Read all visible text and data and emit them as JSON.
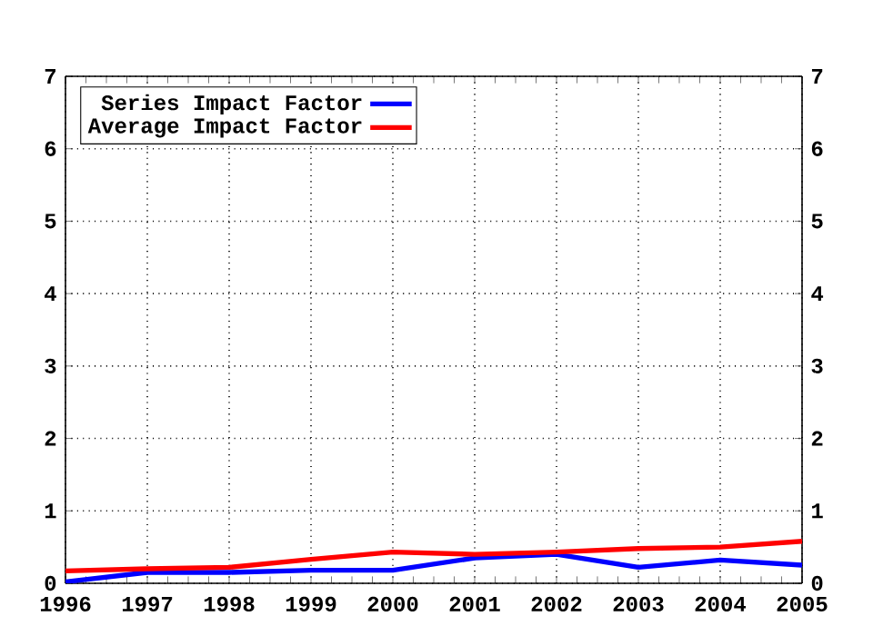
{
  "chart_data": {
    "type": "line",
    "x": [
      1996,
      1997,
      1998,
      1999,
      2000,
      2001,
      2002,
      2003,
      2004,
      2005
    ],
    "series": [
      {
        "name": "Series Impact Factor",
        "color": "#0000ff",
        "values": [
          0.02,
          0.15,
          0.15,
          0.18,
          0.18,
          0.35,
          0.4,
          0.22,
          0.32,
          0.25
        ]
      },
      {
        "name": "Average Impact Factor",
        "color": "#ff0000",
        "values": [
          0.17,
          0.2,
          0.22,
          0.33,
          0.43,
          0.4,
          0.43,
          0.48,
          0.5,
          0.58
        ]
      }
    ],
    "xlim": [
      1996,
      2005
    ],
    "xticks": [
      1996,
      1997,
      1998,
      1999,
      2000,
      2001,
      2002,
      2003,
      2004,
      2005
    ],
    "ylim": [
      0,
      7
    ],
    "yticks": [
      0,
      1,
      2,
      3,
      4,
      5,
      6,
      7
    ],
    "y2lim": [
      0,
      7
    ],
    "y2ticks": [
      0,
      1,
      2,
      3,
      4,
      5,
      6,
      7
    ],
    "grid": true,
    "legend": "top left",
    "line_style": "solid",
    "marker": "none"
  }
}
